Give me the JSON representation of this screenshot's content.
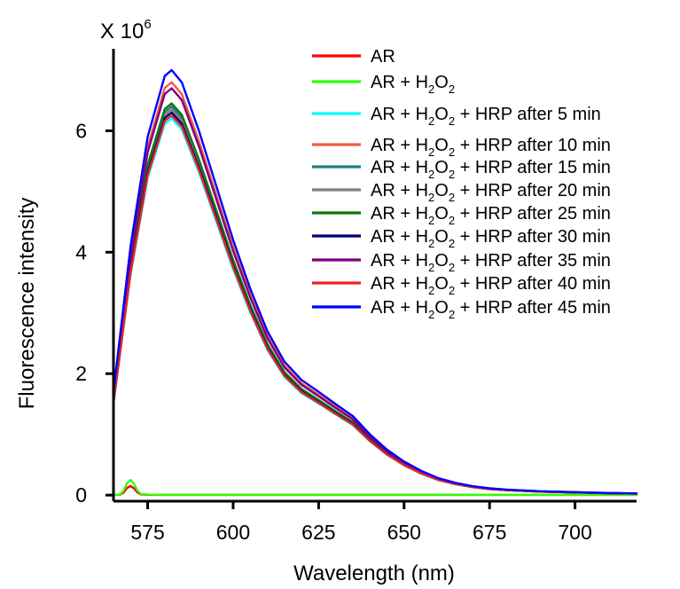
{
  "chart_data": {
    "type": "line",
    "xlabel": "Wavelength (nm)",
    "ylabel": "Fluorescence intensity",
    "y_multiplier_base": "X 10",
    "y_multiplier_exp": "6",
    "xlim": [
      565,
      718
    ],
    "ylim": [
      -0.1,
      7.35
    ],
    "x_ticks": [
      575,
      600,
      625,
      650,
      675,
      700
    ],
    "y_ticks": [
      0,
      2,
      4,
      6
    ],
    "legend_position": "top-right",
    "series": [
      {
        "name": "AR",
        "label_base": "AR",
        "color": "#ff0000",
        "kind": "low",
        "scale": 0.15
      },
      {
        "name": "AR + H2O2",
        "label_base": "AR + H",
        "color": "#33ff00",
        "kind": "low",
        "scale": 0.25
      },
      {
        "name": "AR + H2O2 + HRP after 5 min",
        "label_base": "AR + H",
        "label_suffix": " + HRP after 5 min",
        "color": "#00ffff",
        "kind": "main",
        "scale": 6.2
      },
      {
        "name": "AR + H2O2 + HRP after 10 min",
        "label_base": "AR + H",
        "label_suffix": " + HRP after 10 min",
        "color": "#ee6040",
        "kind": "main",
        "scale": 6.8
      },
      {
        "name": "AR + H2O2 + HRP after 15 min",
        "label_base": "AR + H",
        "label_suffix": " + HRP after 15 min",
        "color": "#1f7f7f",
        "kind": "main",
        "scale": 6.4
      },
      {
        "name": "AR + H2O2 + HRP after 20 min",
        "label_base": "AR + H",
        "label_suffix": " + HRP after 20 min",
        "color": "#808080",
        "kind": "main",
        "scale": 6.35
      },
      {
        "name": "AR + H2O2 + HRP after 25 min",
        "label_base": "AR + H",
        "label_suffix": " + HRP after 25 min",
        "color": "#0a7a0a",
        "kind": "main",
        "scale": 6.45
      },
      {
        "name": "AR + H2O2 + HRP after 30 min",
        "label_base": "AR + H",
        "label_suffix": " + HRP after 30 min",
        "color": "#000080",
        "kind": "main",
        "scale": 6.3
      },
      {
        "name": "AR + H2O2 + HRP after 35 min",
        "label_base": "AR + H",
        "label_suffix": " + HRP after 35 min",
        "color": "#800080",
        "kind": "main",
        "scale": 6.7
      },
      {
        "name": "AR + H2O2 + HRP after 40 min",
        "label_base": "AR + H",
        "label_suffix": " + HRP after 40 min",
        "color": "#ee2020",
        "kind": "main",
        "scale": 6.25
      },
      {
        "name": "AR + H2O2 + HRP after 45 min",
        "label_base": "AR + H",
        "label_suffix": " + HRP after 45 min",
        "color": "#0000ff",
        "kind": "main",
        "scale": 7.0
      }
    ],
    "main_profile": {
      "x": [
        565,
        570,
        575,
        580,
        582,
        585,
        590,
        595,
        600,
        605,
        610,
        615,
        620,
        625,
        630,
        635,
        640,
        645,
        650,
        655,
        660,
        665,
        670,
        675,
        680,
        690,
        700,
        710,
        718
      ],
      "y": [
        0.243,
        0.586,
        0.843,
        0.986,
        1.0,
        0.971,
        0.857,
        0.729,
        0.6,
        0.486,
        0.386,
        0.314,
        0.271,
        0.243,
        0.214,
        0.186,
        0.143,
        0.107,
        0.079,
        0.057,
        0.04,
        0.029,
        0.021,
        0.016,
        0.013,
        0.009,
        0.007,
        0.005,
        0.004
      ]
    },
    "low_profile": {
      "x": [
        565,
        567,
        568,
        569,
        570,
        571,
        572,
        573,
        575,
        580,
        600,
        650,
        700,
        718
      ],
      "y": [
        0.0,
        0.05,
        0.3,
        0.8,
        1.0,
        0.75,
        0.3,
        0.08,
        0.03,
        0.02,
        0.02,
        0.02,
        0.02,
        0.02
      ]
    }
  }
}
